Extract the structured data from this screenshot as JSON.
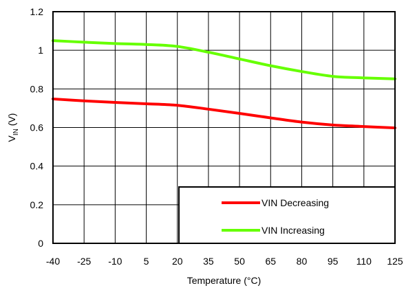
{
  "chart_data": {
    "type": "line",
    "title": "",
    "xlabel": "Temperature (°C)",
    "ylabel_main": "V",
    "ylabel_sub": "IN",
    "ylabel_unit": " (V)",
    "xlim": [
      -40,
      125
    ],
    "ylim": [
      0,
      1.2
    ],
    "x_ticks": [
      -40,
      -25,
      -10,
      5,
      20,
      35,
      50,
      65,
      80,
      95,
      110,
      125
    ],
    "y_ticks": [
      0,
      0.2,
      0.4,
      0.6,
      0.8,
      1,
      1.2
    ],
    "x_tick_labels": [
      "-40",
      "-25",
      "-10",
      "5",
      "20",
      "35",
      "50",
      "65",
      "80",
      "95",
      "110",
      "125"
    ],
    "y_tick_labels": [
      "0",
      "0.2",
      "0.4",
      "0.6",
      "0.8",
      "1",
      "1.2"
    ],
    "grid": true,
    "legend_position": "bottom-right",
    "series": [
      {
        "name": "VIN Decreasing",
        "color": "#ff0000",
        "x": [
          -40,
          -25,
          -10,
          5,
          20,
          35,
          50,
          65,
          80,
          95,
          110,
          125
        ],
        "y": [
          0.748,
          0.738,
          0.73,
          0.723,
          0.715,
          0.695,
          0.673,
          0.65,
          0.628,
          0.613,
          0.605,
          0.598
        ]
      },
      {
        "name": "VIN Increasing",
        "color": "#66ff00",
        "x": [
          -40,
          -25,
          -10,
          5,
          20,
          35,
          50,
          65,
          80,
          95,
          110,
          125
        ],
        "y": [
          1.05,
          1.042,
          1.035,
          1.03,
          1.02,
          0.99,
          0.955,
          0.92,
          0.89,
          0.865,
          0.857,
          0.852
        ]
      }
    ]
  }
}
